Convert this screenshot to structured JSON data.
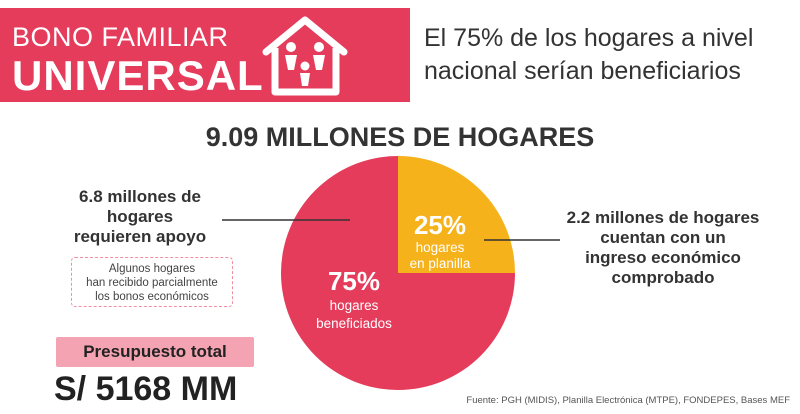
{
  "header": {
    "brand_line1": "BONO FAMILIAR",
    "brand_line2": "UNIVERSAL",
    "headline_line1": "El 75% de los hogares a nivel",
    "headline_line2": "nacional serían beneficiarios"
  },
  "chart_data": {
    "type": "pie",
    "title": "9.09 MILLONES DE HOGARES",
    "slices": [
      {
        "pct_label": "75%",
        "label_line1": "hogares",
        "label_line2": "beneficiados",
        "value": 75,
        "color": "#e63c5c"
      },
      {
        "pct_label": "25%",
        "label_line1": "hogares",
        "label_line2": "en planilla",
        "value": 25,
        "color": "#f6b21b"
      }
    ],
    "annotations": {
      "left_lines": [
        "6.8 millones de",
        "hogares",
        "requieren apoyo"
      ],
      "right_lines": [
        "2.2 millones de hogares",
        "cuentan con un",
        "ingreso económico",
        "comprobado"
      ]
    }
  },
  "note": {
    "line1": "Algunos hogares",
    "line2": "han recibido parcialmente",
    "line3": "los bonos económicos"
  },
  "budget": {
    "label": "Presupuesto total",
    "value": "S/ 5168 MM"
  },
  "source": "Fuente: PGH (MIDIS), Planilla Electrónica (MTPE), FONDEPES, Bases MEF",
  "colors": {
    "brand_red": "#e63c5c",
    "accent_yellow": "#f6b21b",
    "budget_pink": "#f3a3b1"
  }
}
